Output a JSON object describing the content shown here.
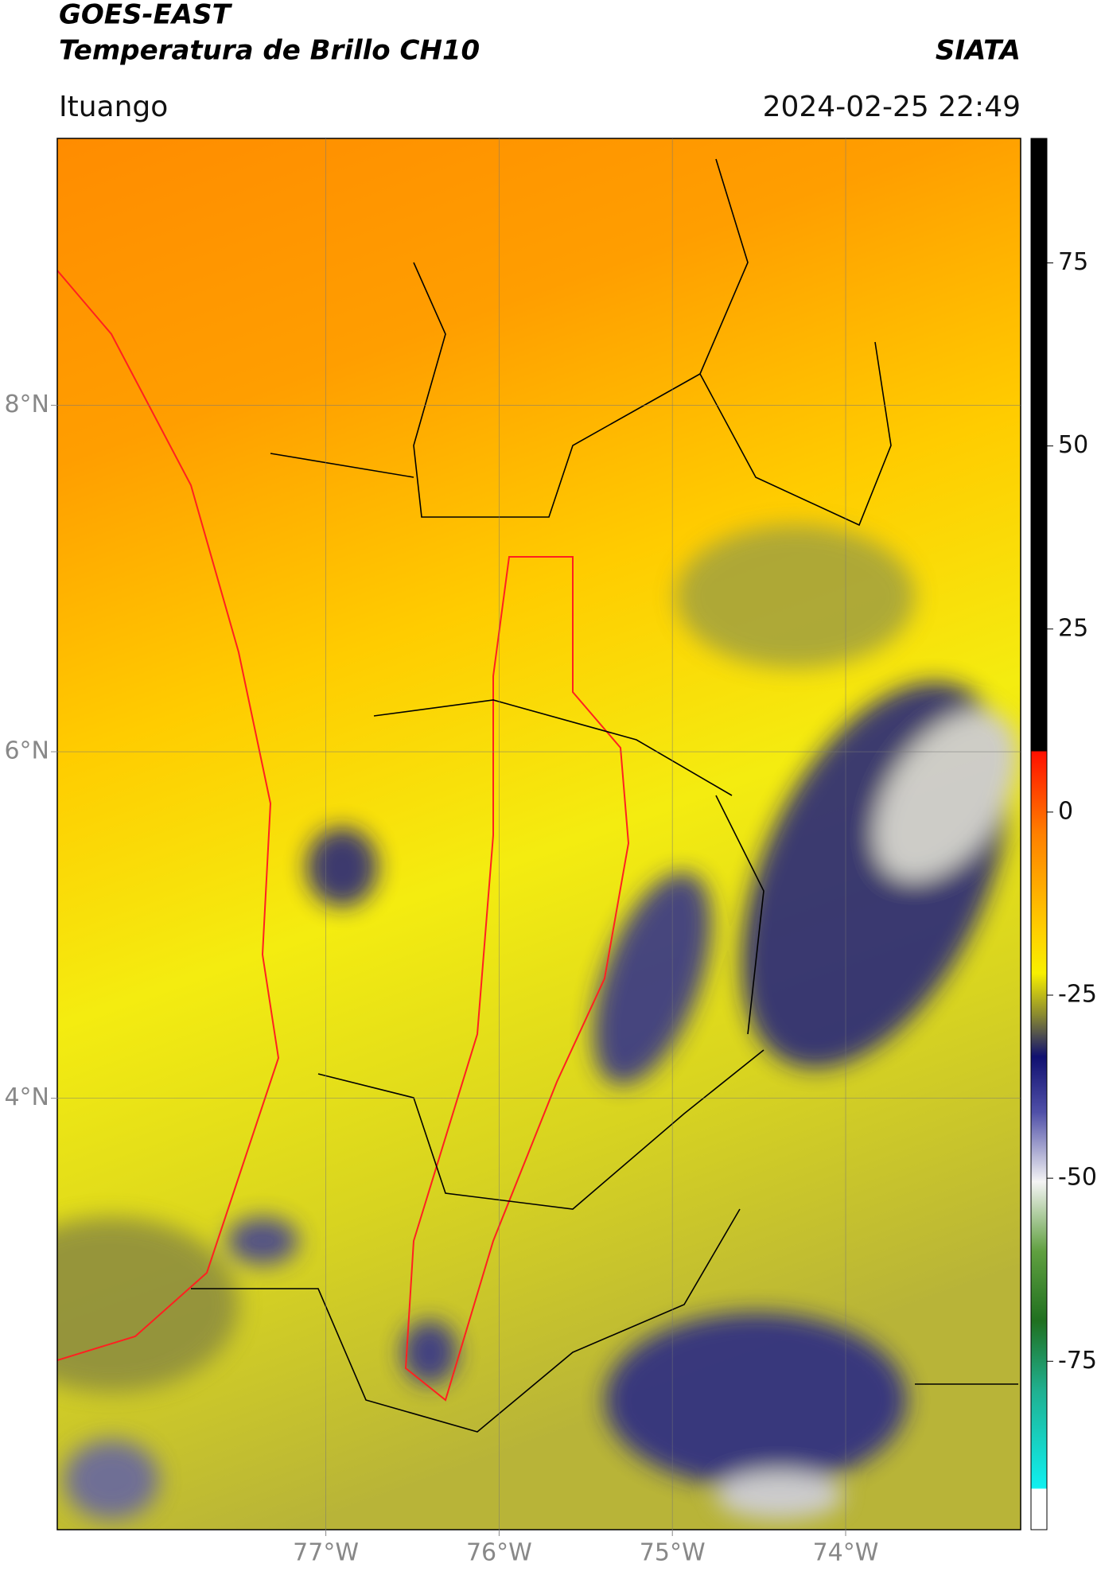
{
  "chart_data": {
    "type": "map",
    "title": "GOES-EAST",
    "subtitle": "Temperatura de Brillo CH10",
    "source": "SIATA",
    "region": "Ituango",
    "datetime": "2024-02-25 22:49",
    "xlim": [
      -78.55,
      -72.99
    ],
    "ylim": [
      1.51,
      9.54
    ],
    "xticks": [
      {
        "value": -77,
        "label": "77°W"
      },
      {
        "value": -76,
        "label": "76°W"
      },
      {
        "value": -75,
        "label": "75°W"
      },
      {
        "value": -74,
        "label": "74°W"
      }
    ],
    "yticks": [
      {
        "value": 8,
        "label": "8°N"
      },
      {
        "value": 6,
        "label": "6°N"
      },
      {
        "value": 4,
        "label": "4°N"
      }
    ],
    "grid": true,
    "colorbar": {
      "lim": [
        -98,
        92
      ],
      "ticks": [
        75,
        50,
        25,
        0,
        -25,
        -50,
        -75
      ]
    }
  }
}
